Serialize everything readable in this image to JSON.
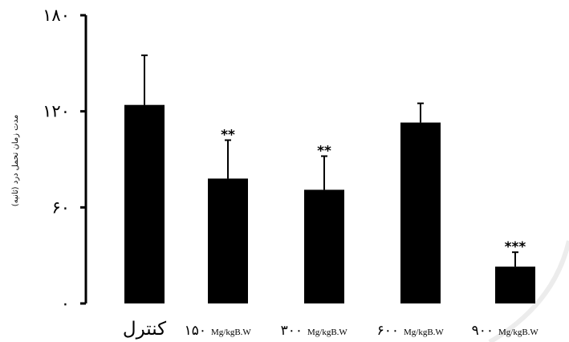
{
  "chart_data": {
    "type": "bar",
    "ylabel": "مدت زمان تحمل درد (ثانیه)",
    "ylim": [
      0,
      180
    ],
    "y_ticks": [
      {
        "value": 0,
        "label": "۰"
      },
      {
        "value": 60,
        "label": "۶۰"
      },
      {
        "value": 120,
        "label": "۱۲۰"
      },
      {
        "value": 180,
        "label": "۱۸۰"
      }
    ],
    "categories": [
      {
        "main": "کنترل",
        "num": "",
        "unit": ""
      },
      {
        "main": "",
        "num": "۱۵۰",
        "unit": "Mg/kgB.W"
      },
      {
        "main": "",
        "num": "۳۰۰",
        "unit": "Mg/kgB.W"
      },
      {
        "main": "",
        "num": "۶۰۰",
        "unit": "Mg/kgB.W"
      },
      {
        "main": "",
        "num": "۹۰۰",
        "unit": "Mg/kgB.W"
      }
    ],
    "values": [
      124,
      78,
      71,
      113,
      23
    ],
    "errors": [
      31,
      24,
      21,
      12,
      9
    ],
    "significance": [
      "",
      "**",
      "**",
      "",
      "***"
    ],
    "bar_color": "#000000"
  }
}
